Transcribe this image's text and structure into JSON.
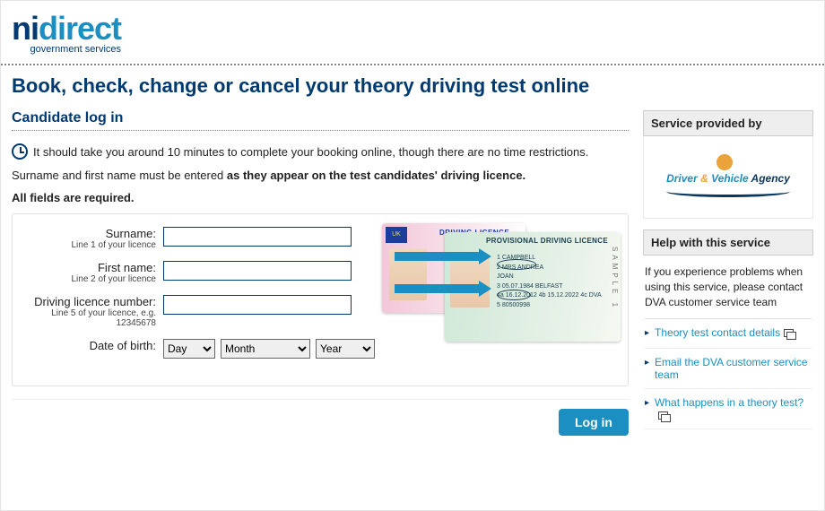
{
  "branding": {
    "logo_ni": "ni",
    "logo_direct": "direct",
    "logo_sub": "government services"
  },
  "page": {
    "title": "Book, check, change or cancel your theory driving test online",
    "section": "Candidate log in"
  },
  "intro": {
    "time_notice": "It should take you around 10 minutes to complete your booking online, though there are no time restrictions.",
    "name_rule_prefix": "Surname and first name must be entered ",
    "name_rule_bold": "as they appear on the test candidates' driving licence.",
    "required": "All fields are required."
  },
  "form": {
    "surname": {
      "label": "Surname:",
      "hint": "Line 1 of your licence",
      "value": ""
    },
    "firstname": {
      "label": "First name:",
      "hint": "Line 2 of your licence",
      "value": ""
    },
    "licence": {
      "label": "Driving licence number:",
      "hint": "Line 5 of your licence, e.g. 12345678",
      "value": ""
    },
    "dob": {
      "label": "Date of birth:",
      "day": "Day",
      "month": "Month",
      "year": "Year"
    },
    "login_button": "Log in"
  },
  "licence_card": {
    "pink_title": "DRIVING LICENCE",
    "green_title": "PROVISIONAL DRIVING LICENCE",
    "eu_flag": "UK",
    "line1": "1 CAMPBELL",
    "line2": "2 MRS ANDREA",
    "line2b": "  JOAN",
    "line3": "3 05.07.1984 BELFAST",
    "line4": "4a 16.12.2012  4b 15.12.2022  4c DVA",
    "line5": "5 80500998",
    "sample": "SAMPLE 1"
  },
  "side": {
    "provided_title": "Service provided by",
    "agency": {
      "driver": "Driver",
      "amp": " & ",
      "vehicle": "Vehicle",
      "agency": " Agency"
    },
    "help_title": "Help with this service",
    "help_text": "If you experience problems when using this service, please contact DVA customer service team",
    "links": {
      "l1": "Theory test contact details",
      "l2": "Email the DVA customer service team",
      "l3": "What happens in a theory test?"
    }
  }
}
